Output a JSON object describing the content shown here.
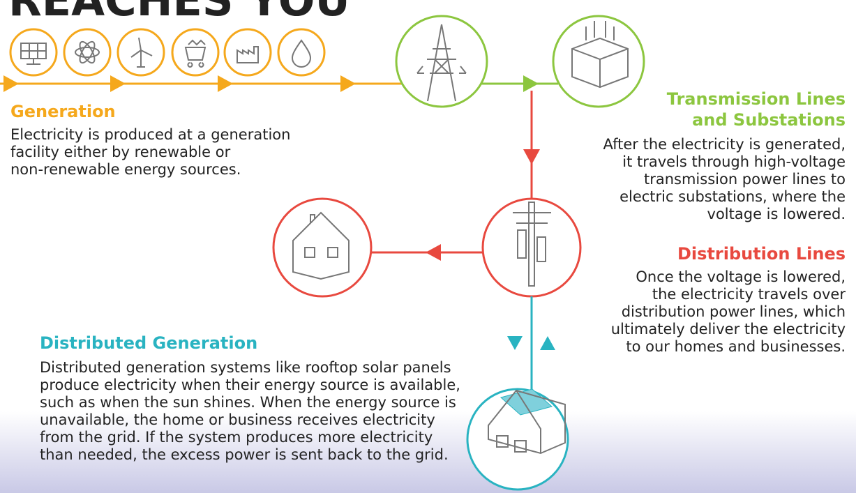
{
  "title": "REACHES YOU",
  "generation": {
    "heading": "Generation",
    "lines": [
      "Electricity is produced at a generation",
      "facility either by renewable or",
      "non-renewable energy sources."
    ]
  },
  "transmission": {
    "heading": [
      "Transmission Lines",
      "and Substations"
    ],
    "lines": [
      "After the electricity is generated,",
      "it travels through high-voltage",
      "transmission power lines to",
      "electric substations, where the",
      "voltage is lowered."
    ]
  },
  "distribution": {
    "heading": "Distribution Lines",
    "lines": [
      "Once the voltage is lowered,",
      "the electricity travels over",
      "distribution power lines, which",
      "ultimately deliver the electricity",
      "to our homes and businesses."
    ]
  },
  "distributed_generation": {
    "heading": "Distributed Generation",
    "lines": [
      "Distributed generation systems like rooftop solar panels",
      "produce electricity when their energy source is available,",
      "such as when the sun shines. When the energy source is",
      "unavailable, the home or business receives electricity",
      "from the grid. If the system produces more electricity",
      "than needed, the excess power is sent back to the grid."
    ]
  }
}
